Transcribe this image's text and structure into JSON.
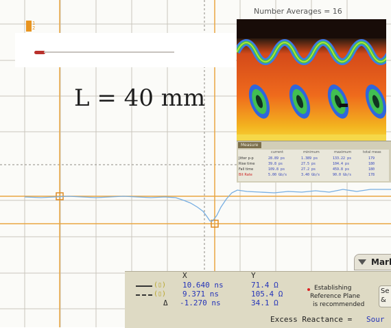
{
  "screen": {
    "overlay_label": "L = 40 mm",
    "top_label": "Number Averages = 16",
    "corner_marker_text": "1\n2"
  },
  "measurement_panel": {
    "tab_label": "Measure",
    "columns": [
      "current",
      "minimum",
      "maximum",
      "total meas"
    ],
    "rows": [
      {
        "label": "Jitter p-p",
        "values": [
          "28.89 ps",
          "1.389 ps",
          "133.22 ps",
          "179"
        ]
      },
      {
        "label": "Rise time",
        "values": [
          "39.8 ps",
          "27.5 ps",
          "104.4 ps",
          "180"
        ]
      },
      {
        "label": "Fall time",
        "values": [
          "109.8 ps",
          "27.2 ps",
          "459.8 ps",
          "180"
        ]
      },
      {
        "label": "Bit Rate",
        "values": [
          "5.00 Gb/s",
          "3.40 Gb/s",
          "90.0 Gb/s",
          "178"
        ]
      }
    ]
  },
  "marker_tab": {
    "label": "Mark"
  },
  "readout": {
    "x_header": "X",
    "y_header": "Y",
    "rows": [
      {
        "symbol": "",
        "x": "10.640 ns",
        "y": "71.4 Ω"
      },
      {
        "symbol": "",
        "x": "9.371 ns",
        "y": "105.4 Ω"
      },
      {
        "symbol": "Δ",
        "x": "-1.270 ns",
        "y": "34.1 Ω"
      }
    ],
    "note": [
      "Establishing",
      "Reference Plane",
      "is recommended"
    ],
    "side_button": [
      "Se",
      "&"
    ],
    "excess_label": "Excess Reactance =",
    "excess_value": "Sour"
  },
  "colors": {
    "grid": "#c9c6bc",
    "marker": "#e9a640",
    "trace": "#77aee2",
    "readout_text": "#2433b8"
  }
}
